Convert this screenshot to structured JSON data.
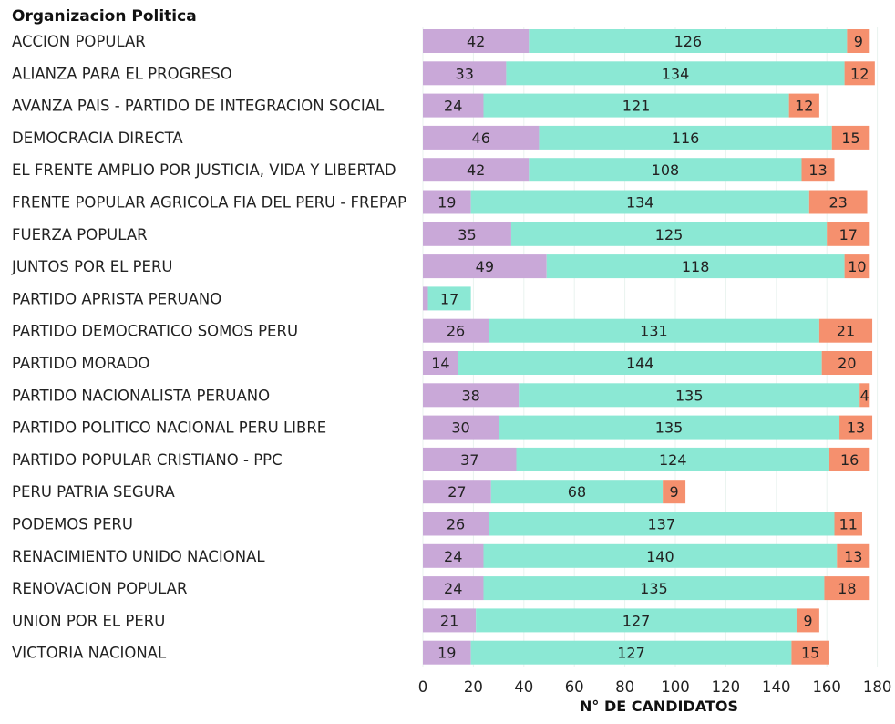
{
  "chart_data": {
    "type": "bar",
    "orientation": "horizontal",
    "stacked": true,
    "row_header": "Organizacion Politica",
    "xlabel": "N° DE CANDIDATOS",
    "xlim": [
      0,
      180
    ],
    "xticks": [
      0,
      20,
      40,
      60,
      80,
      100,
      120,
      140,
      160,
      180
    ],
    "grid": "vertical",
    "categories": [
      "ACCION POPULAR",
      "ALIANZA PARA EL PROGRESO",
      "AVANZA PAIS - PARTIDO DE INTEGRACION SOCIAL",
      "DEMOCRACIA DIRECTA",
      "EL FRENTE AMPLIO POR JUSTICIA, VIDA Y LIBERTAD",
      "FRENTE POPULAR AGRICOLA FIA DEL PERU - FREPAP",
      "FUERZA POPULAR",
      "JUNTOS POR EL PERU",
      "PARTIDO APRISTA PERUANO",
      "PARTIDO DEMOCRATICO SOMOS PERU",
      "PARTIDO MORADO",
      "PARTIDO NACIONALISTA PERUANO",
      "PARTIDO POLITICO NACIONAL PERU LIBRE",
      "PARTIDO POPULAR CRISTIANO - PPC",
      "PERU PATRIA SEGURA",
      "PODEMOS PERU",
      "RENACIMIENTO UNIDO NACIONAL",
      "RENOVACION POPULAR",
      "UNION POR EL PERU",
      "VICTORIA NACIONAL"
    ],
    "series": [
      {
        "color": "#c9a8d8",
        "values": [
          42,
          33,
          24,
          46,
          42,
          19,
          35,
          49,
          2,
          26,
          14,
          38,
          30,
          37,
          27,
          26,
          24,
          24,
          21,
          19
        ],
        "labels": [
          "42",
          "33",
          "24",
          "46",
          "42",
          "19",
          "35",
          "49",
          "",
          "26",
          "14",
          "38",
          "30",
          "37",
          "27",
          "26",
          "24",
          "24",
          "21",
          "19"
        ]
      },
      {
        "color": "#8be8d4",
        "values": [
          126,
          134,
          121,
          116,
          108,
          134,
          125,
          118,
          17,
          131,
          144,
          135,
          135,
          124,
          68,
          137,
          140,
          135,
          127,
          127
        ],
        "labels": [
          "126",
          "134",
          "121",
          "116",
          "108",
          "134",
          "125",
          "118",
          "17",
          "131",
          "144",
          "135",
          "135",
          "124",
          "68",
          "137",
          "140",
          "135",
          "127",
          "127"
        ]
      },
      {
        "color": "#f5906e",
        "values": [
          9,
          12,
          12,
          15,
          13,
          23,
          17,
          10,
          0,
          21,
          20,
          4,
          13,
          16,
          9,
          11,
          13,
          18,
          9,
          15
        ],
        "labels": [
          "9",
          "12",
          "12",
          "15",
          "13",
          "23",
          "17",
          "10",
          "",
          "21",
          "20",
          "4",
          "13",
          "16",
          "9",
          "11",
          "13",
          "18",
          "9",
          "15"
        ]
      }
    ]
  }
}
